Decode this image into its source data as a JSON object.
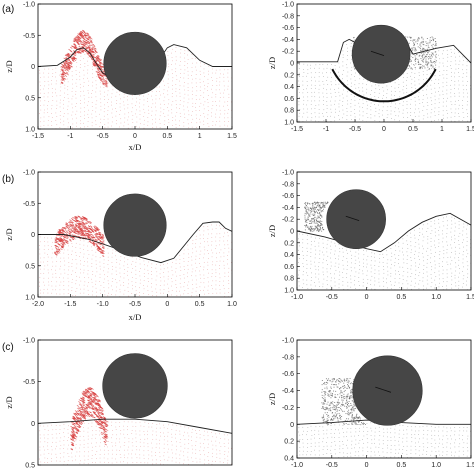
{
  "chart_data": [
    {
      "type": "scatter",
      "panel_label": "(a)",
      "xlabel": "x/D",
      "ylabel": "z/D",
      "xlim": [
        -1.5,
        1.5
      ],
      "ylim": [
        -1.0,
        1.0
      ],
      "y_inverted": true,
      "xticks": [
        "-1.5",
        "-1",
        "-0.5",
        "0",
        "0.5",
        "1",
        "1.5"
      ],
      "yticks": [
        "-1.0",
        "-0.5",
        "0",
        "0.5",
        "1.0"
      ],
      "cylinder": {
        "cx": 0.0,
        "cz": -0.05,
        "r": 0.5
      },
      "surface_x": [
        -1.5,
        -1.2,
        -1.0,
        -0.9,
        -0.8,
        -0.7,
        -0.6,
        -0.5,
        0.0,
        0.3,
        0.4,
        0.5,
        0.6,
        0.8,
        1.0,
        1.2,
        1.5
      ],
      "surface_z": [
        0.0,
        -0.02,
        -0.15,
        -0.27,
        -0.3,
        -0.22,
        -0.05,
        0.1,
        0.45,
        0.25,
        -0.15,
        -0.3,
        -0.35,
        -0.3,
        -0.1,
        0.0,
        0.0
      ],
      "particle_region": "red particles left of cylinder, x -1.2 to -0.4"
    },
    {
      "type": "scatter",
      "xlabel": "x/D",
      "ylabel": "z/D",
      "xlim": [
        -1.5,
        1.5
      ],
      "ylim": [
        -1.0,
        1.0
      ],
      "y_inverted": true,
      "xticks": [
        "-1.5",
        "-1",
        "-0.5",
        "0",
        "0.5",
        "1",
        "1.5"
      ],
      "yticks": [
        "-1.0",
        "-0.8",
        "-0.6",
        "-0.4",
        "-0.2",
        "0",
        "0.2",
        "0.4",
        "0.6",
        "0.8",
        "1.0"
      ],
      "cylinder": {
        "cx": -0.05,
        "cz": -0.15,
        "r": 0.5
      },
      "arc": {
        "cx": 0.0,
        "cz": -0.35,
        "r": 1.0
      },
      "surface_x": [
        -1.5,
        -0.8,
        -0.7,
        -0.6,
        -0.4,
        0.0,
        0.3,
        0.5,
        0.9,
        1.2,
        1.5
      ],
      "surface_z": [
        -0.02,
        -0.02,
        -0.35,
        -0.4,
        -0.3,
        -0.55,
        -0.5,
        -0.15,
        -0.25,
        -0.3,
        0.0
      ]
    },
    {
      "type": "scatter",
      "panel_label": "(b)",
      "xlabel": "x/D",
      "ylabel": "z/D",
      "xlim": [
        -2.0,
        1.0
      ],
      "ylim": [
        -1.0,
        1.0
      ],
      "y_inverted": true,
      "xticks": [
        "-2.0",
        "-1.5",
        "-1.0",
        "-0.5",
        "0",
        "0.5",
        "1.0"
      ],
      "yticks": [
        "-1.0",
        "-0.5",
        "0",
        "0.5",
        "1.0"
      ],
      "cylinder": {
        "cx": -0.5,
        "cz": -0.15,
        "r": 0.5
      },
      "surface_x": [
        -2.0,
        -1.6,
        -1.2,
        -0.8,
        -0.4,
        -0.1,
        0.1,
        0.4,
        0.55,
        0.7,
        0.8,
        0.9,
        1.0
      ],
      "surface_z": [
        0.0,
        0.0,
        0.08,
        0.22,
        0.37,
        0.45,
        0.38,
        0.0,
        -0.18,
        -0.2,
        -0.2,
        -0.1,
        -0.05
      ],
      "particle_region": "red particles left of cylinder, x -1.8 to -1.0"
    },
    {
      "type": "scatter",
      "xlabel": "",
      "ylabel": "z/D",
      "xlim": [
        -1.0,
        1.5
      ],
      "ylim": [
        -1.0,
        1.0
      ],
      "y_inverted": true,
      "xticks": [
        "-1.0",
        "-0.5",
        "0",
        "0.5",
        "1.0",
        "1.5"
      ],
      "yticks": [
        "-1.0",
        "-0.8",
        "-0.6",
        "-0.4",
        "-0.2",
        "0",
        "0.2",
        "0.4",
        "0.6",
        "0.8",
        "1.0"
      ],
      "cylinder": {
        "cx": -0.15,
        "cz": -0.2,
        "r": 0.5
      },
      "surface_x": [
        -1.0,
        -0.6,
        -0.3,
        0.0,
        0.2,
        0.4,
        0.6,
        0.8,
        1.0,
        1.2,
        1.5
      ],
      "surface_z": [
        0.0,
        0.1,
        0.2,
        0.3,
        0.35,
        0.2,
        0.0,
        -0.15,
        -0.25,
        -0.3,
        -0.1
      ]
    },
    {
      "type": "scatter",
      "panel_label": "(c)",
      "xlabel": "",
      "ylabel": "z/D",
      "xlim": [
        -1.5,
        1.5
      ],
      "ylim": [
        -1.0,
        0.5
      ],
      "y_inverted": true,
      "yticks": [
        "-1.0",
        "-0.5",
        "0",
        "0.5"
      ],
      "cylinder": {
        "cx": 0.0,
        "cz": -0.45,
        "r": 0.5
      },
      "surface_x": [
        -1.5,
        -1.0,
        -0.5,
        0.0,
        0.5,
        1.0,
        1.5
      ],
      "surface_z": [
        0.0,
        -0.02,
        -0.05,
        -0.05,
        -0.02,
        0.05,
        0.12
      ],
      "particle_region": "red particles left of cylinder, x -1.0 to -0.4"
    },
    {
      "type": "scatter",
      "xlabel": "",
      "ylabel": "z/D",
      "xlim": [
        -1.0,
        1.5
      ],
      "ylim": [
        -1.0,
        0.4
      ],
      "y_inverted": true,
      "xticks": [
        "-1.0",
        "-0.5",
        "0",
        "0.5",
        "1.0",
        "1.5"
      ],
      "yticks": [
        "-1.0",
        "-0.8",
        "-0.6",
        "-0.4",
        "-0.2",
        "0",
        "0.2",
        "0.4"
      ],
      "cylinder": {
        "cx": 0.3,
        "cz": -0.4,
        "r": 0.5
      },
      "surface_x": [
        -1.0,
        -0.5,
        0.0,
        0.5,
        1.0,
        1.5
      ],
      "surface_z": [
        0.0,
        -0.02,
        -0.05,
        -0.02,
        0.0,
        0.0
      ]
    }
  ],
  "colors": {
    "cylinder": "#464646",
    "particles_red": "#d63a3a",
    "particles_pink": "#e6a0a0",
    "particles_grey": "#666666",
    "surface_line": "#222222",
    "axis": "#000000"
  }
}
